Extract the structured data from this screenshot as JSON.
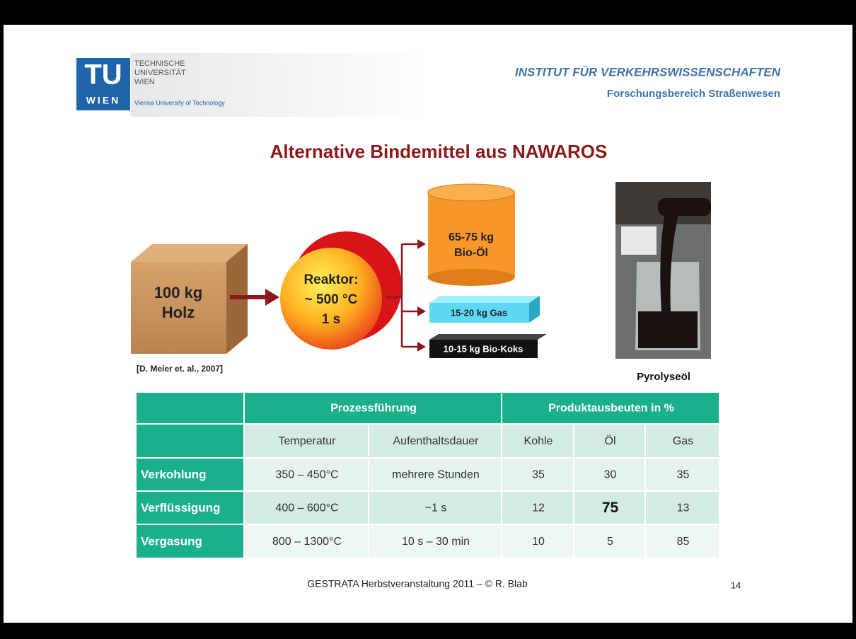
{
  "header": {
    "logo": {
      "mark": "TU",
      "city": "WIEN",
      "lines": [
        "TECHNISCHE",
        "UNIVERSITÄT",
        "WIEN"
      ],
      "tagline": "Vienna University of Technology"
    },
    "institute": "INSTITUT FÜR VERKEHRSWISSENSCHAFTEN",
    "department": "Forschungsbereich Straßenwesen"
  },
  "title": "Alternative Bindemittel aus NAWAROS",
  "diagram": {
    "input": [
      "100 kg",
      "Holz"
    ],
    "reactor": [
      "Reaktor:",
      "~ 500 °C",
      "1 s"
    ],
    "outputs": {
      "oil": [
        "65-75 kg",
        "Bio-Öl"
      ],
      "gas": "15-20 kg Gas",
      "coke": "10-15 kg Bio-Koks"
    },
    "citation": "[D. Meier et. al., 2007]",
    "photo_caption": "Pyrolyseöl"
  },
  "table": {
    "groups": [
      "Prozessführung",
      "Produktausbeuten in %"
    ],
    "columns": [
      "Temperatur",
      "Aufenthaltsdauer",
      "Kohle",
      "Öl",
      "Gas"
    ],
    "rows": [
      [
        "Verkohlung",
        "350 – 450°C",
        "mehrere Stunden",
        35,
        30,
        35
      ],
      [
        "Verflüssigung",
        "400 – 600°C",
        "~1 s",
        12,
        75,
        13
      ],
      [
        "Vergasung",
        "800 – 1300°C",
        "10 s – 30 min",
        10,
        5,
        85
      ]
    ]
  },
  "footer": {
    "text": "GESTRATA Herbstveranstaltung 2011 – © R. Blab",
    "page": 14
  }
}
